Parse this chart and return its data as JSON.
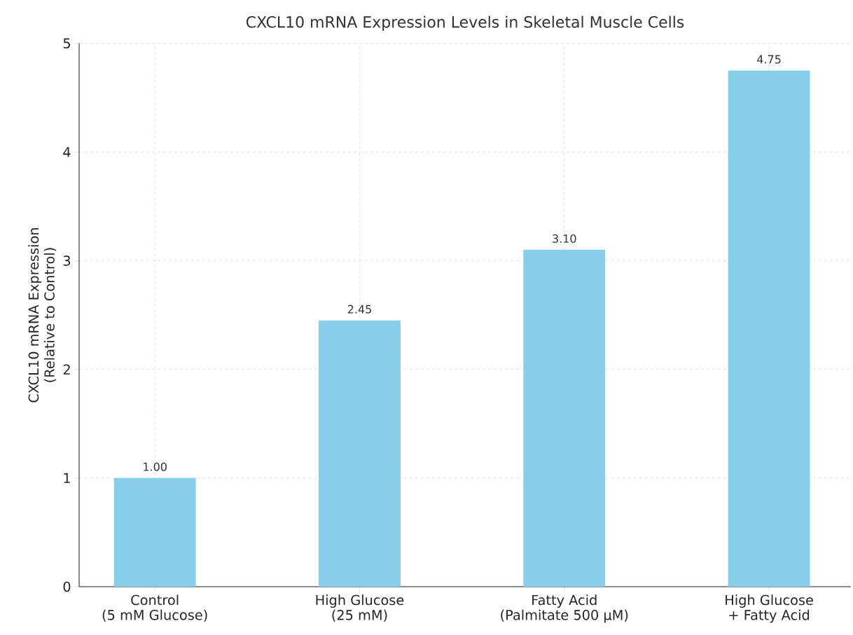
{
  "chart_data": {
    "type": "bar",
    "title": "CXCL10 mRNA Expression Levels in Skeletal Muscle Cells",
    "ylabel": "CXCL10 mRNA Expression\n(Relative to Control)",
    "categories": [
      "Control\n(5 mM Glucose)",
      "High Glucose\n(25 mM)",
      "Fatty Acid\n(Palmitate 500 µM)",
      "High Glucose\n+ Fatty Acid"
    ],
    "values": [
      1.0,
      2.45,
      3.1,
      4.75
    ],
    "value_labels": [
      "1.00",
      "2.45",
      "3.10",
      "4.75"
    ],
    "color": "#87ceeb",
    "ylim": [
      0,
      5
    ],
    "yticks": [
      0,
      1,
      2,
      3,
      4,
      5
    ],
    "grid": true
  }
}
